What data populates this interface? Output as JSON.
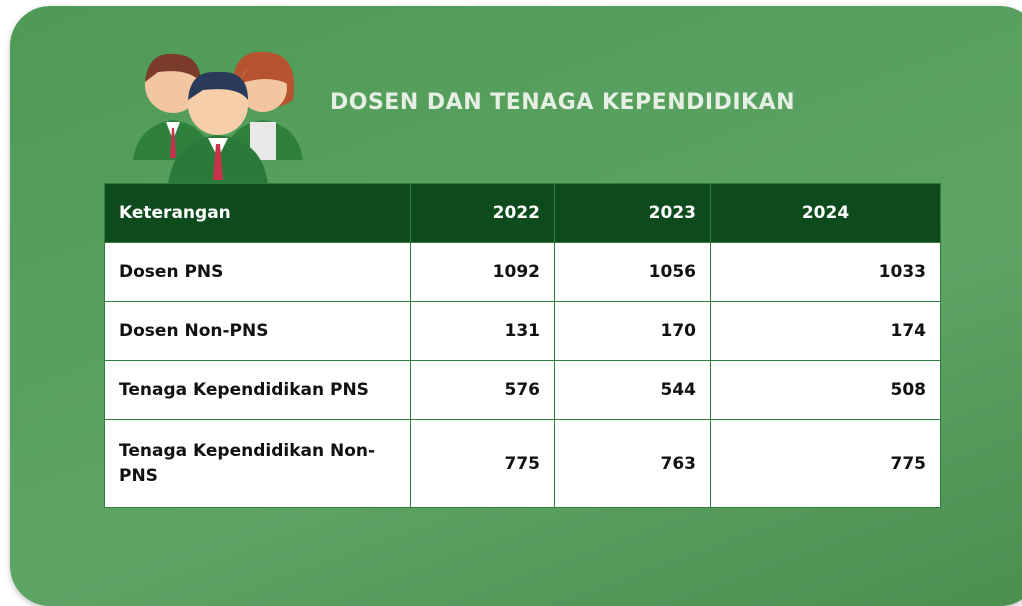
{
  "header": {
    "title": "DOSEN DAN TENAGA KEPENDIDIKAN"
  },
  "table": {
    "headers": [
      "Keterangan",
      "2022",
      "2023",
      "2024"
    ],
    "rows": [
      [
        "Dosen PNS",
        1092,
        1056,
        1033
      ],
      [
        "Dosen Non-PNS",
        131,
        170,
        174
      ],
      [
        "Tenaga Kependidikan PNS",
        576,
        544,
        508
      ],
      [
        "Tenaga Kependidikan Non-PNS",
        775,
        763,
        775
      ]
    ]
  }
}
